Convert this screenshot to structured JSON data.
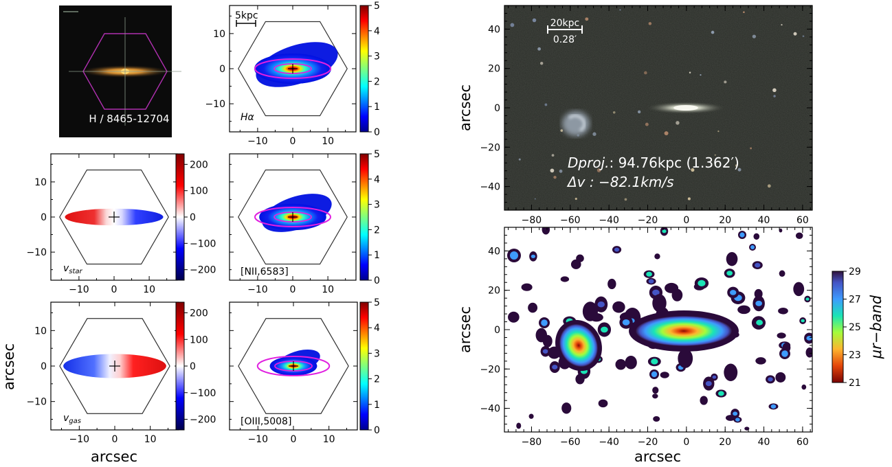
{
  "figure": {
    "sdss_label": "H / 8465-12704",
    "axis_label": "arcsec",
    "right_ylabel": "arcsec",
    "colorbar_label": "μr−band",
    "projection": {
      "scale_top": "20kpc",
      "scale_bottom": "0.28′",
      "dproj_prefix": "Dproj.",
      "dproj_value": ": 94.76kpc (1.362′)",
      "dv_text": "Δv :  −82.1km/s"
    },
    "scalebar_5kpc": "5kpc"
  },
  "chart_data": [
    {
      "type": "heatmap",
      "panel": "H-alpha flux map",
      "annotation": "Hα",
      "xlim": [
        -18,
        18
      ],
      "ylim": [
        -18,
        18
      ],
      "xticks": [
        -10,
        0,
        10
      ],
      "yticks": [
        -10,
        0,
        10
      ],
      "xtick_labels": [
        "−10",
        "0",
        "10"
      ],
      "ytick_labels": [
        "−10",
        "0",
        "10"
      ],
      "colorbar": {
        "min": 0,
        "max": 5,
        "ticks": [
          "0",
          "1",
          "2",
          "3",
          "4",
          "5"
        ],
        "cmap": "jet"
      }
    },
    {
      "type": "heatmap",
      "panel": "stellar velocity map",
      "annotation": "vstar",
      "xlim": [
        -18,
        18
      ],
      "ylim": [
        -18,
        18
      ],
      "yticks": [
        -10,
        0,
        10
      ],
      "ytick_labels": [
        "−10",
        "0",
        "10"
      ],
      "xtick_labels": [
        "−10",
        "0",
        "10"
      ],
      "colorbar": {
        "min": -240,
        "max": 240,
        "ticks": [
          "−200",
          "−100",
          "0",
          "100",
          "200"
        ],
        "cmap": "seismic"
      }
    },
    {
      "type": "heatmap",
      "panel": "[NII] flux map",
      "annotation": "[NII,6583]",
      "xlim": [
        -18,
        18
      ],
      "ylim": [
        -18,
        18
      ],
      "xtick_labels": [
        "−10",
        "0",
        "10"
      ],
      "colorbar": {
        "min": 0,
        "max": 5,
        "ticks": [
          "0",
          "1",
          "2",
          "3",
          "4",
          "5"
        ],
        "cmap": "jet"
      }
    },
    {
      "type": "heatmap",
      "panel": "gas velocity map",
      "annotation": "vgas",
      "xlim": [
        -18,
        18
      ],
      "ylim": [
        -18,
        18
      ],
      "xticks": [
        -10,
        0,
        10
      ],
      "yticks": [
        -10,
        0,
        10
      ],
      "xtick_labels": [
        "−10",
        "0",
        "10"
      ],
      "ytick_labels": [
        "−10",
        "0",
        "10"
      ],
      "colorbar": {
        "min": -240,
        "max": 240,
        "ticks": [
          "−200",
          "−100",
          "0",
          "100",
          "200"
        ],
        "cmap": "seismic"
      }
    },
    {
      "type": "heatmap",
      "panel": "[OIII] flux map",
      "annotation": "[OIII,5008]",
      "xlim": [
        -18,
        18
      ],
      "ylim": [
        -18,
        18
      ],
      "xtick_labels": [
        "−10",
        "0",
        "10"
      ],
      "colorbar": {
        "min": 0,
        "max": 5,
        "ticks": [
          "0",
          "1",
          "2",
          "3",
          "4",
          "5"
        ],
        "cmap": "jet"
      }
    },
    {
      "type": "heatmap",
      "panel": "wide-field color image",
      "xlim": [
        -94,
        65
      ],
      "ylim": [
        -52,
        52
      ],
      "xticks": [
        -80,
        -60,
        -40,
        -20,
        0,
        20,
        40,
        60
      ],
      "xtick_labels": [
        "−80",
        "−60",
        "−40",
        "−20",
        "0",
        "20",
        "40",
        "60"
      ],
      "yticks": [
        -40,
        -20,
        0,
        20,
        40
      ],
      "ytick_labels": [
        "−40",
        "−20",
        "0",
        "20",
        "40"
      ]
    },
    {
      "type": "heatmap",
      "panel": "r-band surface brightness",
      "xlim": [
        -94,
        65
      ],
      "ylim": [
        -52,
        52
      ],
      "xticks": [
        -80,
        -60,
        -40,
        -20,
        0,
        20,
        40,
        60
      ],
      "xtick_labels": [
        "−80",
        "−60",
        "−40",
        "−20",
        "0",
        "20",
        "40",
        "60"
      ],
      "yticks": [
        -40,
        -20,
        0,
        20,
        40
      ],
      "ytick_labels": [
        "−40",
        "−20",
        "0",
        "20",
        "40"
      ],
      "colorbar": {
        "min": 21,
        "max": 29,
        "ticks": [
          "21",
          "23",
          "25",
          "27",
          "29"
        ],
        "cmap": "turbo_r"
      }
    }
  ],
  "colors": {
    "ellipse": "#e020e0",
    "hexagon_small": "#b030b0",
    "hexagon": "#303030",
    "sky_dark": "#2a2d28",
    "mu_dark": "#2a0a3a"
  }
}
